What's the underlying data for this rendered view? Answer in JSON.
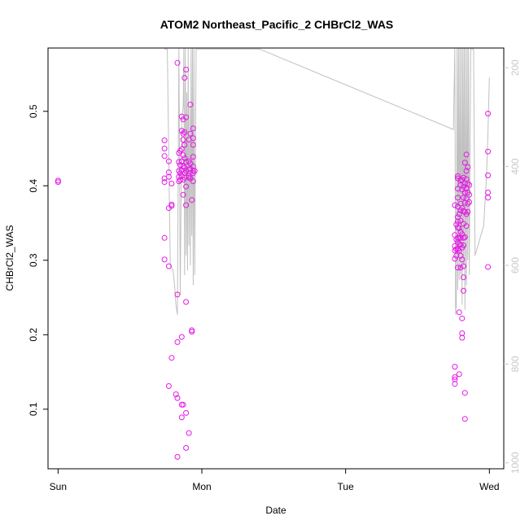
{
  "chart_data": {
    "type": "scatter",
    "title": "ATOM2 Northeast_Pacific_2 CHBrCl2_WAS",
    "xlabel": "Date",
    "ylabel": "CHBrCl2_WAS",
    "x_unit": "days",
    "x_ticks": [
      {
        "label": "Sun",
        "value": 0
      },
      {
        "label": "Mon",
        "value": 1
      },
      {
        "label": "Tue",
        "value": 2
      },
      {
        "label": "Wed",
        "value": 3
      }
    ],
    "xlim": [
      -0.07,
      3.1
    ],
    "ylim": [
      0.02,
      0.585
    ],
    "y_ticks": [
      0.1,
      0.2,
      0.3,
      0.4,
      0.5
    ],
    "y_tick_labels": [
      "0.1",
      "0.2",
      "0.3",
      "0.4",
      "0.5"
    ],
    "y2_ticks": [
      200,
      400,
      600,
      800,
      1000
    ],
    "y2_tick_labels": [
      "200",
      "400",
      "600",
      "800",
      "1000"
    ],
    "y2lim": [
      1012,
      160
    ],
    "colors": {
      "points": "#e619e6",
      "line": "#c0c0c0",
      "right_axis": "#c8c8c8"
    },
    "series": [
      {
        "kind": "points",
        "points": [
          [
            0.0,
            0.407
          ],
          [
            0.0,
            0.405
          ],
          [
            0.74,
            0.461
          ],
          [
            0.74,
            0.45
          ],
          [
            0.74,
            0.44
          ],
          [
            0.74,
            0.41
          ],
          [
            0.74,
            0.405
          ],
          [
            0.74,
            0.33
          ],
          [
            0.74,
            0.301
          ],
          [
            0.77,
            0.433
          ],
          [
            0.77,
            0.418
          ],
          [
            0.77,
            0.412
          ],
          [
            0.77,
            0.292
          ],
          [
            0.77,
            0.37
          ],
          [
            0.77,
            0.131
          ],
          [
            0.79,
            0.403
          ],
          [
            0.79,
            0.375
          ],
          [
            0.79,
            0.373
          ],
          [
            0.79,
            0.169
          ],
          [
            0.82,
            0.12
          ],
          [
            0.83,
            0.565
          ],
          [
            0.83,
            0.254
          ],
          [
            0.83,
            0.19
          ],
          [
            0.83,
            0.115
          ],
          [
            0.83,
            0.036
          ],
          [
            0.84,
            0.444
          ],
          [
            0.84,
            0.432
          ],
          [
            0.84,
            0.42
          ],
          [
            0.84,
            0.412
          ],
          [
            0.84,
            0.406
          ],
          [
            0.85,
            0.447
          ],
          [
            0.85,
            0.428
          ],
          [
            0.85,
            0.417
          ],
          [
            0.85,
            0.408
          ],
          [
            0.86,
            0.493
          ],
          [
            0.86,
            0.474
          ],
          [
            0.86,
            0.449
          ],
          [
            0.86,
            0.433
          ],
          [
            0.86,
            0.421
          ],
          [
            0.86,
            0.413
          ],
          [
            0.86,
            0.197
          ],
          [
            0.86,
            0.106
          ],
          [
            0.86,
            0.089
          ],
          [
            0.87,
            0.489
          ],
          [
            0.87,
            0.47
          ],
          [
            0.87,
            0.462
          ],
          [
            0.87,
            0.441
          ],
          [
            0.87,
            0.426
          ],
          [
            0.87,
            0.408
          ],
          [
            0.87,
            0.388
          ],
          [
            0.87,
            0.106
          ],
          [
            0.88,
            0.545
          ],
          [
            0.88,
            0.472
          ],
          [
            0.88,
            0.455
          ],
          [
            0.88,
            0.437
          ],
          [
            0.88,
            0.424
          ],
          [
            0.88,
            0.417
          ],
          [
            0.88,
            0.411
          ],
          [
            0.89,
            0.556
          ],
          [
            0.89,
            0.492
          ],
          [
            0.89,
            0.432
          ],
          [
            0.89,
            0.42
          ],
          [
            0.89,
            0.399
          ],
          [
            0.89,
            0.374
          ],
          [
            0.89,
            0.244
          ],
          [
            0.89,
            0.095
          ],
          [
            0.89,
            0.048
          ],
          [
            0.91,
            0.462
          ],
          [
            0.91,
            0.433
          ],
          [
            0.91,
            0.422
          ],
          [
            0.91,
            0.413
          ],
          [
            0.91,
            0.411
          ],
          [
            0.91,
            0.068
          ],
          [
            0.92,
            0.509
          ],
          [
            0.92,
            0.47
          ],
          [
            0.92,
            0.43
          ],
          [
            0.92,
            0.423
          ],
          [
            0.92,
            0.41
          ],
          [
            0.93,
            0.381
          ],
          [
            0.93,
            0.206
          ],
          [
            0.93,
            0.204
          ],
          [
            0.94,
            0.477
          ],
          [
            0.94,
            0.464
          ],
          [
            0.94,
            0.455
          ],
          [
            0.94,
            0.439
          ],
          [
            0.94,
            0.426
          ],
          [
            0.94,
            0.42
          ],
          [
            0.94,
            0.417
          ],
          [
            0.94,
            0.406
          ],
          [
            0.95,
            0.42
          ],
          [
            2.76,
            0.374
          ],
          [
            2.76,
            0.334
          ],
          [
            2.76,
            0.319
          ],
          [
            2.76,
            0.313
          ],
          [
            2.76,
            0.302
          ],
          [
            2.76,
            0.157
          ],
          [
            2.76,
            0.143
          ],
          [
            2.76,
            0.14
          ],
          [
            2.76,
            0.134
          ],
          [
            2.77,
            0.348
          ],
          [
            2.77,
            0.328
          ],
          [
            2.77,
            0.315
          ],
          [
            2.77,
            0.306
          ],
          [
            2.78,
            0.413
          ],
          [
            2.78,
            0.41
          ],
          [
            2.78,
            0.396
          ],
          [
            2.78,
            0.384
          ],
          [
            2.78,
            0.372
          ],
          [
            2.78,
            0.358
          ],
          [
            2.78,
            0.352
          ],
          [
            2.78,
            0.344
          ],
          [
            2.78,
            0.33
          ],
          [
            2.78,
            0.324
          ],
          [
            2.78,
            0.315
          ],
          [
            2.78,
            0.29
          ],
          [
            2.79,
            0.362
          ],
          [
            2.79,
            0.343
          ],
          [
            2.79,
            0.33
          ],
          [
            2.79,
            0.322
          ],
          [
            2.79,
            0.313
          ],
          [
            2.79,
            0.23
          ],
          [
            2.79,
            0.147
          ],
          [
            2.8,
            0.407
          ],
          [
            2.8,
            0.401
          ],
          [
            2.8,
            0.376
          ],
          [
            2.8,
            0.367
          ],
          [
            2.8,
            0.353
          ],
          [
            2.8,
            0.338
          ],
          [
            2.8,
            0.33
          ],
          [
            2.8,
            0.321
          ],
          [
            2.8,
            0.306
          ],
          [
            2.8,
            0.29
          ],
          [
            2.81,
            0.408
          ],
          [
            2.81,
            0.395
          ],
          [
            2.81,
            0.37
          ],
          [
            2.81,
            0.335
          ],
          [
            2.81,
            0.317
          ],
          [
            2.81,
            0.301
          ],
          [
            2.81,
            0.222
          ],
          [
            2.81,
            0.202
          ],
          [
            2.81,
            0.196
          ],
          [
            2.82,
            0.411
          ],
          [
            2.82,
            0.399
          ],
          [
            2.82,
            0.384
          ],
          [
            2.82,
            0.366
          ],
          [
            2.82,
            0.349
          ],
          [
            2.82,
            0.33
          ],
          [
            2.82,
            0.32
          ],
          [
            2.82,
            0.292
          ],
          [
            2.82,
            0.277
          ],
          [
            2.82,
            0.259
          ],
          [
            2.83,
            0.431
          ],
          [
            2.83,
            0.403
          ],
          [
            2.83,
            0.391
          ],
          [
            2.83,
            0.377
          ],
          [
            2.83,
            0.365
          ],
          [
            2.83,
            0.331
          ],
          [
            2.83,
            0.122
          ],
          [
            2.83,
            0.087
          ],
          [
            2.84,
            0.442
          ],
          [
            2.84,
            0.42
          ],
          [
            2.84,
            0.409
          ],
          [
            2.84,
            0.396
          ],
          [
            2.84,
            0.383
          ],
          [
            2.84,
            0.362
          ],
          [
            2.84,
            0.346
          ],
          [
            2.85,
            0.425
          ],
          [
            2.85,
            0.403
          ],
          [
            2.85,
            0.391
          ],
          [
            2.85,
            0.376
          ],
          [
            2.85,
            0.365
          ],
          [
            2.86,
            0.401
          ],
          [
            2.86,
            0.388
          ],
          [
            2.86,
            0.378
          ],
          [
            2.99,
            0.497
          ],
          [
            2.99,
            0.446
          ],
          [
            2.99,
            0.414
          ],
          [
            2.99,
            0.391
          ],
          [
            2.99,
            0.384
          ],
          [
            2.99,
            0.291
          ]
        ]
      },
      {
        "kind": "line",
        "axis": "y2",
        "x": [
          0.74,
          0.76,
          0.78,
          0.8,
          0.81,
          0.82,
          0.83,
          0.84,
          0.85,
          0.86,
          0.87,
          0.875,
          0.88,
          0.885,
          0.89,
          0.895,
          0.9,
          0.905,
          0.91,
          0.915,
          0.92,
          0.925,
          0.93,
          0.935,
          0.94,
          0.945,
          0.95,
          0.96,
          1.4,
          2.75,
          2.76,
          2.765,
          2.77,
          2.775,
          2.78,
          2.785,
          2.79,
          2.795,
          2.8,
          2.805,
          2.81,
          2.815,
          2.82,
          2.825,
          2.83,
          2.835,
          2.84,
          2.845,
          2.85,
          2.855,
          2.86,
          2.87,
          2.88,
          2.89,
          2.9,
          2.93,
          2.96,
          2.98,
          2.99,
          3.0
        ],
        "y": [
          162,
          162,
          600,
          610,
          640,
          680,
          700,
          160,
          660,
          300,
          280,
          160,
          620,
          160,
          580,
          250,
          610,
          160,
          560,
          280,
          600,
          160,
          540,
          160,
          640,
          160,
          620,
          162,
          162,
          325,
          160,
          700,
          680,
          160,
          650,
          160,
          630,
          160,
          620,
          160,
          680,
          160,
          600,
          160,
          690,
          160,
          640,
          160,
          590,
          160,
          620,
          162,
          162,
          162,
          580,
          550,
          520,
          420,
          330,
          220
        ]
      }
    ]
  }
}
